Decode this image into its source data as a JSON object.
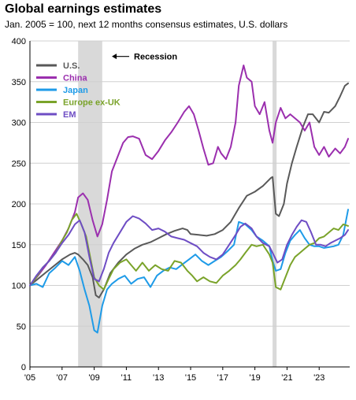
{
  "chart_data": {
    "type": "line",
    "title": "Global earnings estimates",
    "subtitle": "Jan. 2005 = 100, next 12 months consensus estimates, U.S. dollars",
    "xlabel": "",
    "ylabel": "",
    "xlim": [
      2005.0,
      2024.9
    ],
    "ylim": [
      0,
      400
    ],
    "y_ticks": [
      0,
      50,
      100,
      150,
      200,
      250,
      300,
      350,
      400
    ],
    "x_ticks": [
      {
        "value": 2005,
        "label": "'05"
      },
      {
        "value": 2007,
        "label": "'07"
      },
      {
        "value": 2009,
        "label": "'09"
      },
      {
        "value": 2011,
        "label": "'11"
      },
      {
        "value": 2013,
        "label": "'13"
      },
      {
        "value": 2015,
        "label": "'15"
      },
      {
        "value": 2017,
        "label": "'17"
      },
      {
        "value": 2019,
        "label": "'19"
      },
      {
        "value": 2021,
        "label": "'21"
      },
      {
        "value": 2023,
        "label": "'23"
      }
    ],
    "grid": "horizontal",
    "legend_position": "top-left",
    "recessions": [
      {
        "start": 2008.0,
        "end": 2009.5
      },
      {
        "start": 2020.1,
        "end": 2020.35
      }
    ],
    "annotations": [
      {
        "text": "Recession",
        "arrow": "left",
        "x": 2010.1,
        "y": 381
      }
    ],
    "series": [
      {
        "name": "U.S.",
        "color": "#595959",
        "x": [
          2005.0,
          2005.5,
          2006.0,
          2006.5,
          2007.0,
          2007.5,
          2007.8,
          2008.0,
          2008.3,
          2008.6,
          2008.9,
          2009.1,
          2009.3,
          2009.6,
          2010.0,
          2010.5,
          2011.0,
          2011.5,
          2012.0,
          2012.5,
          2013.0,
          2013.5,
          2014.0,
          2014.5,
          2014.8,
          2015.0,
          2015.5,
          2016.0,
          2016.5,
          2017.0,
          2017.5,
          2018.0,
          2018.5,
          2019.0,
          2019.5,
          2020.0,
          2020.1,
          2020.3,
          2020.5,
          2020.8,
          2021.0,
          2021.3,
          2021.6,
          2022.0,
          2022.3,
          2022.6,
          2023.0,
          2023.3,
          2023.6,
          2024.0,
          2024.3,
          2024.6,
          2024.8
        ],
        "y": [
          100,
          108,
          116,
          124,
          132,
          138,
          140,
          138,
          132,
          125,
          110,
          88,
          85,
          95,
          115,
          128,
          138,
          145,
          150,
          153,
          158,
          163,
          167,
          170,
          168,
          163,
          162,
          161,
          163,
          168,
          178,
          195,
          210,
          215,
          222,
          232,
          233,
          188,
          185,
          200,
          225,
          250,
          270,
          295,
          310,
          310,
          300,
          313,
          312,
          320,
          332,
          345,
          348
        ]
      },
      {
        "name": "China",
        "color": "#9b2fae",
        "x": [
          2005.0,
          2005.5,
          2006.0,
          2006.5,
          2007.0,
          2007.4,
          2007.8,
          2008.0,
          2008.3,
          2008.6,
          2008.9,
          2009.2,
          2009.5,
          2009.8,
          2010.1,
          2010.5,
          2010.8,
          2011.1,
          2011.4,
          2011.8,
          2012.2,
          2012.6,
          2013.0,
          2013.4,
          2013.8,
          2014.2,
          2014.6,
          2014.9,
          2015.2,
          2015.5,
          2015.8,
          2016.1,
          2016.4,
          2016.7,
          2016.9,
          2017.2,
          2017.5,
          2017.8,
          2018.0,
          2018.3,
          2018.5,
          2018.8,
          2019.0,
          2019.3,
          2019.6,
          2019.9,
          2020.1,
          2020.3,
          2020.6,
          2020.9,
          2021.2,
          2021.5,
          2021.8,
          2022.1,
          2022.4,
          2022.7,
          2023.0,
          2023.3,
          2023.6,
          2024.0,
          2024.3,
          2024.6,
          2024.8
        ],
        "y": [
          100,
          112,
          125,
          140,
          155,
          170,
          190,
          208,
          213,
          205,
          180,
          160,
          175,
          205,
          240,
          260,
          275,
          282,
          283,
          280,
          260,
          255,
          265,
          278,
          288,
          300,
          313,
          320,
          310,
          290,
          268,
          248,
          250,
          270,
          262,
          255,
          270,
          300,
          345,
          370,
          355,
          350,
          320,
          310,
          325,
          290,
          275,
          300,
          318,
          305,
          310,
          305,
          300,
          290,
          300,
          270,
          260,
          270,
          258,
          268,
          262,
          270,
          280
        ]
      },
      {
        "name": "Japan",
        "color": "#1e9be8",
        "x": [
          2005.0,
          2005.4,
          2005.8,
          2006.2,
          2006.6,
          2007.0,
          2007.4,
          2007.8,
          2008.1,
          2008.4,
          2008.7,
          2009.0,
          2009.2,
          2009.5,
          2009.8,
          2010.1,
          2010.5,
          2010.9,
          2011.3,
          2011.7,
          2012.1,
          2012.5,
          2012.9,
          2013.3,
          2013.7,
          2014.1,
          2014.5,
          2014.9,
          2015.3,
          2015.7,
          2016.1,
          2016.5,
          2016.9,
          2017.3,
          2017.7,
          2018.0,
          2018.4,
          2018.8,
          2019.1,
          2019.5,
          2019.9,
          2020.1,
          2020.3,
          2020.6,
          2020.9,
          2021.2,
          2021.5,
          2021.8,
          2022.1,
          2022.4,
          2022.7,
          2023.0,
          2023.3,
          2023.6,
          2023.9,
          2024.2,
          2024.5,
          2024.8
        ],
        "y": [
          100,
          102,
          98,
          115,
          122,
          130,
          125,
          135,
          118,
          95,
          75,
          45,
          42,
          75,
          95,
          102,
          108,
          112,
          102,
          108,
          110,
          98,
          112,
          118,
          122,
          120,
          126,
          132,
          138,
          130,
          125,
          130,
          135,
          142,
          150,
          178,
          175,
          168,
          160,
          155,
          148,
          130,
          118,
          120,
          140,
          155,
          162,
          168,
          158,
          150,
          148,
          148,
          146,
          147,
          148,
          150,
          162,
          193
        ]
      },
      {
        "name": "Europe ex-UK",
        "color": "#7aa32a",
        "x": [
          2005.0,
          2005.4,
          2005.8,
          2006.2,
          2006.6,
          2007.0,
          2007.3,
          2007.6,
          2007.9,
          2008.2,
          2008.5,
          2008.8,
          2009.0,
          2009.3,
          2009.6,
          2009.9,
          2010.2,
          2010.6,
          2011.0,
          2011.3,
          2011.6,
          2012.0,
          2012.4,
          2012.8,
          2013.2,
          2013.6,
          2014.0,
          2014.4,
          2014.8,
          2015.1,
          2015.4,
          2015.8,
          2016.2,
          2016.6,
          2017.0,
          2017.4,
          2017.8,
          2018.1,
          2018.4,
          2018.8,
          2019.1,
          2019.5,
          2019.9,
          2020.1,
          2020.3,
          2020.6,
          2020.9,
          2021.2,
          2021.5,
          2021.8,
          2022.1,
          2022.4,
          2022.7,
          2023.0,
          2023.3,
          2023.6,
          2023.9,
          2024.2,
          2024.5,
          2024.8
        ],
        "y": [
          100,
          110,
          122,
          130,
          140,
          155,
          165,
          180,
          188,
          175,
          160,
          130,
          110,
          100,
          95,
          108,
          120,
          128,
          132,
          125,
          118,
          128,
          118,
          125,
          120,
          118,
          130,
          128,
          118,
          112,
          105,
          110,
          105,
          103,
          112,
          118,
          125,
          132,
          140,
          150,
          148,
          150,
          138,
          128,
          98,
          95,
          110,
          125,
          135,
          140,
          145,
          150,
          152,
          158,
          160,
          165,
          170,
          168,
          175,
          173
        ]
      },
      {
        "name": "EM",
        "color": "#6e4dc4",
        "x": [
          2005.0,
          2005.4,
          2005.8,
          2006.2,
          2006.6,
          2007.0,
          2007.4,
          2007.8,
          2008.1,
          2008.4,
          2008.7,
          2009.0,
          2009.3,
          2009.6,
          2009.9,
          2010.2,
          2010.6,
          2011.0,
          2011.4,
          2011.8,
          2012.2,
          2012.6,
          2013.0,
          2013.4,
          2013.8,
          2014.2,
          2014.6,
          2015.0,
          2015.4,
          2015.8,
          2016.2,
          2016.6,
          2017.0,
          2017.4,
          2017.8,
          2018.1,
          2018.4,
          2018.8,
          2019.1,
          2019.5,
          2019.9,
          2020.1,
          2020.4,
          2020.7,
          2021.0,
          2021.3,
          2021.6,
          2021.9,
          2022.2,
          2022.5,
          2022.8,
          2023.1,
          2023.4,
          2023.7,
          2024.0,
          2024.3,
          2024.6,
          2024.8
        ],
        "y": [
          100,
          112,
          122,
          130,
          140,
          152,
          162,
          175,
          180,
          165,
          135,
          108,
          105,
          120,
          140,
          152,
          165,
          178,
          185,
          182,
          176,
          168,
          170,
          166,
          160,
          158,
          156,
          152,
          148,
          140,
          135,
          132,
          138,
          150,
          162,
          172,
          176,
          170,
          160,
          152,
          148,
          140,
          128,
          132,
          150,
          162,
          172,
          180,
          178,
          165,
          150,
          150,
          148,
          152,
          155,
          158,
          162,
          168
        ]
      }
    ]
  }
}
